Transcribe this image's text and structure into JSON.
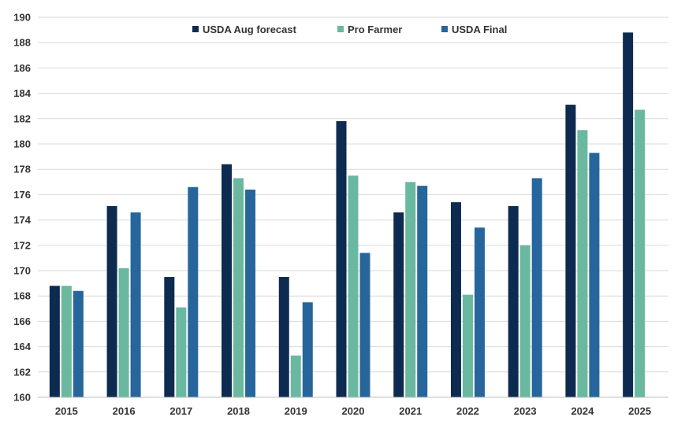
{
  "chart_data": {
    "type": "bar",
    "title": "",
    "xlabel": "",
    "ylabel": "",
    "ylim": [
      160,
      190
    ],
    "ytick_step": 2,
    "grid": true,
    "legend_position": "top",
    "categories": [
      "2015",
      "2016",
      "2017",
      "2018",
      "2019",
      "2020",
      "2021",
      "2022",
      "2023",
      "2024",
      "2025"
    ],
    "series": [
      {
        "name": "USDA Aug forecast",
        "color": "#0d2b50",
        "values": [
          168.8,
          175.1,
          169.5,
          178.4,
          169.5,
          181.8,
          174.6,
          175.4,
          175.1,
          183.1,
          188.8
        ]
      },
      {
        "name": "Pro Farmer",
        "color": "#6ab8a0",
        "values": [
          168.8,
          170.2,
          167.1,
          177.3,
          163.3,
          177.5,
          177.0,
          168.1,
          172.0,
          181.1,
          182.7
        ]
      },
      {
        "name": "USDA Final",
        "color": "#27669c",
        "values": [
          168.4,
          174.6,
          176.6,
          176.4,
          167.5,
          171.4,
          176.7,
          173.4,
          177.3,
          179.3,
          null
        ]
      }
    ]
  }
}
